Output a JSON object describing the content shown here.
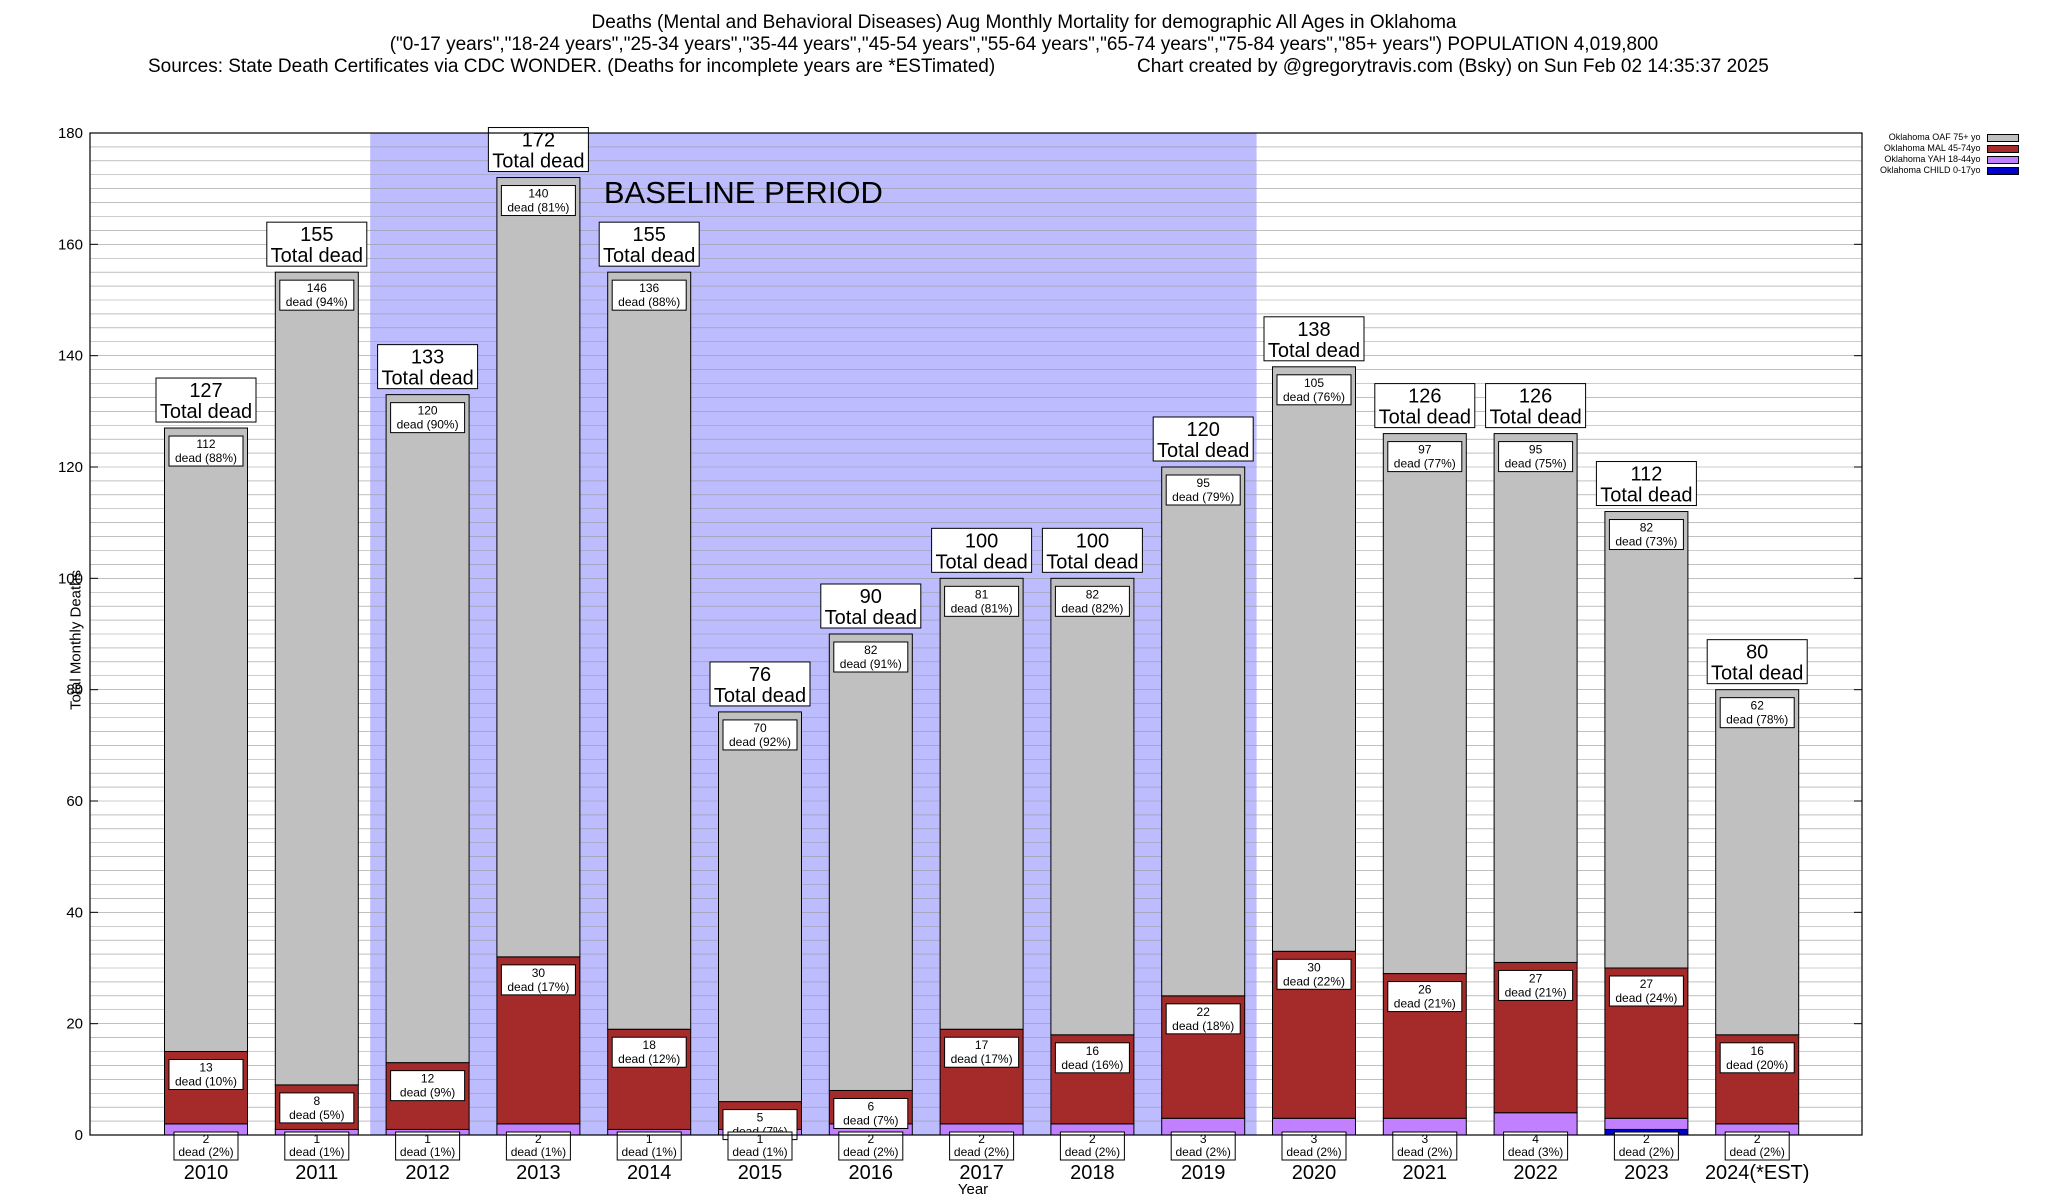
{
  "title": {
    "line1": "Deaths (Mental and Behavioral Diseases) Aug Monthly Mortality for demographic All Ages in Oklahoma",
    "line2": "(\"0-17 years\",\"18-24 years\",\"25-34 years\",\"35-44 years\",\"45-54 years\",\"55-64 years\",\"65-74 years\",\"75-84 years\",\"85+ years\") POPULATION 4,019,800",
    "sources": "Sources: State Death Certificates via CDC WONDER. (Deaths for incomplete years are *ESTimated)",
    "credit": "Chart created by @gregorytravis.com (Bsky) on Sun Feb 02 14:35:37 2025"
  },
  "chart_data": {
    "type": "bar",
    "stacked": true,
    "xlabel": "Year",
    "ylabel": "Total Monthly Deaths",
    "ylim": [
      0,
      180
    ],
    "yticks": [
      0,
      20,
      40,
      60,
      80,
      100,
      120,
      140,
      160,
      180
    ],
    "grid": true,
    "legend_position": "top-right",
    "categories": [
      "2010",
      "2011",
      "2012",
      "2013",
      "2014",
      "2015",
      "2016",
      "2017",
      "2018",
      "2019",
      "2020",
      "2021",
      "2022",
      "2023",
      "2024(*EST)"
    ],
    "totals": [
      127,
      155,
      133,
      172,
      155,
      76,
      90,
      100,
      100,
      120,
      138,
      126,
      126,
      112,
      80
    ],
    "total_label": "Total dead",
    "series": [
      {
        "name": "Oklahoma CHILD 0-17yo",
        "color": "#0000cc",
        "values": [
          0,
          0,
          0,
          0,
          0,
          0,
          0,
          0,
          0,
          0,
          0,
          0,
          0,
          1,
          0
        ]
      },
      {
        "name": "Oklahoma YAH 18-44yo",
        "color": "#c080ff",
        "values": [
          2,
          1,
          1,
          2,
          1,
          1,
          2,
          2,
          2,
          3,
          3,
          3,
          4,
          2,
          2
        ],
        "pct": [
          "2%",
          "1%",
          "1%",
          "1%",
          "1%",
          "1%",
          "2%",
          "2%",
          "2%",
          "2%",
          "2%",
          "2%",
          "3%",
          "2%",
          "2%"
        ]
      },
      {
        "name": "Oklahoma MAL 45-74yo",
        "color": "#a52a2a",
        "values": [
          13,
          8,
          12,
          30,
          18,
          5,
          6,
          17,
          16,
          22,
          30,
          26,
          27,
          27,
          16
        ],
        "pct": [
          "10%",
          "5%",
          "9%",
          "17%",
          "12%",
          "7%",
          "7%",
          "17%",
          "16%",
          "18%",
          "22%",
          "21%",
          "21%",
          "24%",
          "20%"
        ]
      },
      {
        "name": "Oklahoma OAF 75+ yo",
        "color": "#c0c0c0",
        "values": [
          112,
          146,
          120,
          140,
          136,
          70,
          82,
          81,
          82,
          95,
          105,
          97,
          95,
          82,
          62
        ],
        "pct": [
          "88%",
          "94%",
          "90%",
          "81%",
          "88%",
          "92%",
          "91%",
          "81%",
          "82%",
          "79%",
          "76%",
          "77%",
          "75%",
          "73%",
          "78%"
        ]
      }
    ],
    "dead_word": "dead",
    "baseline": {
      "label": "BASELINE PERIOD",
      "from": "2012",
      "to": "2019",
      "color": "#bcbcff"
    }
  }
}
